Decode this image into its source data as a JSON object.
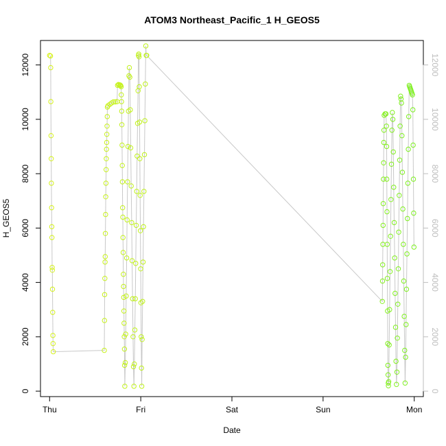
{
  "chart_data": {
    "type": "scatter",
    "title": "ATOM3 Northeast_Pacific_1 H_GEOS5",
    "xlabel": "Date",
    "ylabel": "H_GEOS5",
    "x_unit": "days",
    "x_ticks": [
      {
        "value": 0,
        "label": "Thu"
      },
      {
        "value": 1,
        "label": "Fri"
      },
      {
        "value": 2,
        "label": "Sat"
      },
      {
        "value": 3,
        "label": "Sun"
      },
      {
        "value": 4,
        "label": "Mon"
      }
    ],
    "y_ticks": [
      0,
      2000,
      4000,
      6000,
      8000,
      10000,
      12000
    ],
    "xlim": [
      -0.1,
      4.1
    ],
    "ylim": [
      -200,
      12900
    ],
    "grid": false,
    "right_axis": true,
    "colors": {
      "line": "#c8c8c8",
      "early": "#d6f21a",
      "late": "#7cf01e"
    },
    "series": [
      {
        "points": [
          [
            0.0,
            12350
          ],
          [
            0.01,
            12330
          ],
          [
            0.012,
            11900
          ],
          [
            0.014,
            10650
          ],
          [
            0.016,
            9400
          ],
          [
            0.018,
            8550
          ],
          [
            0.02,
            7650
          ],
          [
            0.022,
            6750
          ],
          [
            0.024,
            6050
          ],
          [
            0.026,
            5650
          ],
          [
            0.028,
            4550
          ],
          [
            0.03,
            4450
          ],
          [
            0.032,
            3750
          ],
          [
            0.034,
            2900
          ],
          [
            0.036,
            2050
          ],
          [
            0.038,
            1750
          ],
          [
            0.04,
            1450
          ],
          [
            0.6,
            1500
          ],
          [
            0.602,
            2600
          ],
          [
            0.604,
            3550
          ],
          [
            0.606,
            4150
          ],
          [
            0.608,
            4750
          ],
          [
            0.61,
            4950
          ],
          [
            0.612,
            5800
          ],
          [
            0.614,
            6500
          ],
          [
            0.616,
            7150
          ],
          [
            0.618,
            7650
          ],
          [
            0.62,
            8150
          ],
          [
            0.622,
            8550
          ],
          [
            0.624,
            8900
          ],
          [
            0.626,
            9150
          ],
          [
            0.628,
            9450
          ],
          [
            0.63,
            9750
          ],
          [
            0.632,
            10100
          ],
          [
            0.634,
            10450
          ],
          [
            0.64,
            10500
          ],
          [
            0.66,
            10550
          ],
          [
            0.68,
            10600
          ],
          [
            0.7,
            10640
          ],
          [
            0.72,
            10640
          ],
          [
            0.74,
            10650
          ],
          [
            0.745,
            11250
          ],
          [
            0.755,
            11280
          ],
          [
            0.765,
            11270
          ],
          [
            0.775,
            11260
          ],
          [
            0.78,
            11240
          ],
          [
            0.785,
            11200
          ],
          [
            0.787,
            10900
          ],
          [
            0.789,
            10650
          ],
          [
            0.791,
            10300
          ],
          [
            0.793,
            9800
          ],
          [
            0.795,
            9050
          ],
          [
            0.797,
            8300
          ],
          [
            0.799,
            7700
          ],
          [
            0.801,
            6750
          ],
          [
            0.803,
            6400
          ],
          [
            0.805,
            5650
          ],
          [
            0.807,
            5100
          ],
          [
            0.809,
            4300
          ],
          [
            0.811,
            3850
          ],
          [
            0.813,
            3450
          ],
          [
            0.815,
            2950
          ],
          [
            0.817,
            2500
          ],
          [
            0.819,
            2000
          ],
          [
            0.821,
            1550
          ],
          [
            0.823,
            950
          ],
          [
            0.825,
            180
          ],
          [
            0.83,
            1050
          ],
          [
            0.835,
            2100
          ],
          [
            0.84,
            3500
          ],
          [
            0.845,
            4900
          ],
          [
            0.85,
            6300
          ],
          [
            0.855,
            7700
          ],
          [
            0.86,
            9000
          ],
          [
            0.865,
            10300
          ],
          [
            0.87,
            11600
          ],
          [
            0.875,
            11900
          ],
          [
            0.88,
            11550
          ],
          [
            0.885,
            10350
          ],
          [
            0.89,
            8950
          ],
          [
            0.895,
            7550
          ],
          [
            0.9,
            6200
          ],
          [
            0.905,
            4800
          ],
          [
            0.91,
            3400
          ],
          [
            0.915,
            2000
          ],
          [
            0.92,
            900
          ],
          [
            0.925,
            180
          ],
          [
            0.93,
            1000
          ],
          [
            0.935,
            2250
          ],
          [
            0.94,
            3400
          ],
          [
            0.945,
            4700
          ],
          [
            0.95,
            6100
          ],
          [
            0.955,
            7350
          ],
          [
            0.96,
            8650
          ],
          [
            0.965,
            9850
          ],
          [
            0.97,
            11050
          ],
          [
            0.975,
            12350
          ],
          [
            0.978,
            12400
          ],
          [
            0.981,
            12300
          ],
          [
            0.984,
            11200
          ],
          [
            0.987,
            9900
          ],
          [
            0.99,
            8550
          ],
          [
            0.993,
            7200
          ],
          [
            0.996,
            5900
          ],
          [
            0.999,
            4500
          ],
          [
            1.002,
            3250
          ],
          [
            1.005,
            2000
          ],
          [
            1.008,
            850
          ],
          [
            1.011,
            180
          ],
          [
            1.015,
            1900
          ],
          [
            1.02,
            3300
          ],
          [
            1.025,
            4750
          ],
          [
            1.03,
            6050
          ],
          [
            1.035,
            7350
          ],
          [
            1.04,
            8700
          ],
          [
            1.045,
            9950
          ],
          [
            1.05,
            11300
          ],
          [
            1.055,
            12700
          ],
          [
            1.06,
            12350
          ],
          [
            1.065,
            12350
          ],
          [
            3.65,
            3300
          ],
          [
            3.652,
            4050
          ],
          [
            3.654,
            4650
          ],
          [
            3.656,
            5400
          ],
          [
            3.658,
            6100
          ],
          [
            3.66,
            6900
          ],
          [
            3.662,
            7800
          ],
          [
            3.664,
            8400
          ],
          [
            3.666,
            9150
          ],
          [
            3.668,
            9600
          ],
          [
            3.67,
            10150
          ],
          [
            3.68,
            10200
          ],
          [
            3.69,
            10200
          ],
          [
            3.695,
            9750
          ],
          [
            3.697,
            9000
          ],
          [
            3.699,
            7800
          ],
          [
            3.701,
            6600
          ],
          [
            3.703,
            5400
          ],
          [
            3.705,
            4150
          ],
          [
            3.707,
            2950
          ],
          [
            3.709,
            1750
          ],
          [
            3.711,
            950
          ],
          [
            3.713,
            600
          ],
          [
            3.715,
            300
          ],
          [
            3.717,
            200
          ],
          [
            3.72,
            350
          ],
          [
            3.725,
            1700
          ],
          [
            3.73,
            3000
          ],
          [
            3.735,
            4400
          ],
          [
            3.74,
            5700
          ],
          [
            3.745,
            7050
          ],
          [
            3.75,
            8350
          ],
          [
            3.755,
            9600
          ],
          [
            3.76,
            10250
          ],
          [
            3.765,
            10000
          ],
          [
            3.77,
            8800
          ],
          [
            3.775,
            7500
          ],
          [
            3.78,
            6200
          ],
          [
            3.785,
            4900
          ],
          [
            3.79,
            3600
          ],
          [
            3.795,
            2350
          ],
          [
            3.8,
            1100
          ],
          [
            3.805,
            250
          ],
          [
            3.81,
            700
          ],
          [
            3.815,
            1950
          ],
          [
            3.82,
            3200
          ],
          [
            3.825,
            4500
          ],
          [
            3.83,
            5850
          ],
          [
            3.835,
            7200
          ],
          [
            3.84,
            8500
          ],
          [
            3.845,
            9750
          ],
          [
            3.85,
            10850
          ],
          [
            3.855,
            10750
          ],
          [
            3.86,
            10600
          ],
          [
            3.865,
            9400
          ],
          [
            3.87,
            8050
          ],
          [
            3.875,
            6700
          ],
          [
            3.88,
            5400
          ],
          [
            3.885,
            4050
          ],
          [
            3.89,
            2750
          ],
          [
            3.895,
            1500
          ],
          [
            3.9,
            300
          ],
          [
            3.905,
            1250
          ],
          [
            3.91,
            2450
          ],
          [
            3.915,
            3750
          ],
          [
            3.92,
            5050
          ],
          [
            3.925,
            6350
          ],
          [
            3.93,
            7650
          ],
          [
            3.935,
            8900
          ],
          [
            3.94,
            10100
          ],
          [
            3.945,
            11250
          ],
          [
            3.95,
            11200
          ],
          [
            3.955,
            11150
          ],
          [
            3.96,
            11100
          ],
          [
            3.965,
            11050
          ],
          [
            3.97,
            11000
          ],
          [
            3.975,
            10950
          ],
          [
            3.98,
            10900
          ],
          [
            3.985,
            10350
          ],
          [
            3.988,
            9050
          ],
          [
            3.991,
            7800
          ],
          [
            3.994,
            6550
          ],
          [
            3.997,
            5300
          ]
        ]
      }
    ]
  }
}
